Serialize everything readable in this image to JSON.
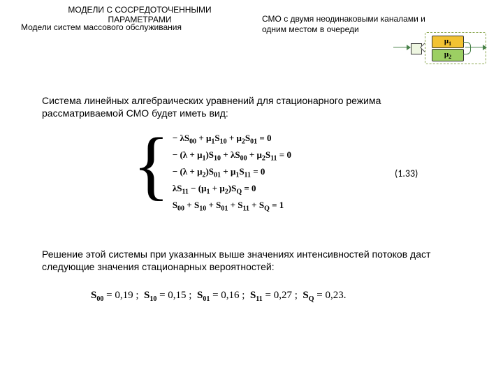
{
  "header": {
    "title": "МОДЕЛИ  С  СОСРЕДОТОЧЕННЫМИ  ПАРАМЕТРАМИ",
    "subtitle": "Модели систем массового обслуживания",
    "right": "СМО с двумя неодинаковыми каналами и одним местом в очереди"
  },
  "diagram": {
    "mu1": "μ",
    "mu1_sub": "1",
    "mu2": "μ",
    "mu2_sub": "2",
    "colors": {
      "dash_border": "#8aa64f",
      "channel1_fill": "#f2c233",
      "channel2_fill": "#9ccf63",
      "queue_fill": "#eef6e1",
      "arrow": "#49824a"
    }
  },
  "para1": "Система линейных алгебраических уравнений для стационарного режима рассматриваемой СМО будет иметь вид:",
  "equations": {
    "rows": [
      "− λS<sub>00</sub> + μ<sub>1</sub>S<sub>10</sub> + μ<sub>2</sub>S<sub>01</sub> = 0",
      "− (λ + μ<sub>1</sub>)S<sub>10</sub> + λS<sub>00</sub> + μ<sub>2</sub>S<sub>11</sub> = 0",
      "− (λ + μ<sub>2</sub>)S<sub>01</sub> + μ<sub>1</sub>S<sub>11</sub> = 0",
      "λS<sub>11</sub> − (μ<sub>1</sub> + μ<sub>2</sub>)S<sub>Q</sub> = 0",
      "S<sub>00</sub> + S<sub>10</sub> + S<sub>01</sub> + S<sub>11</sub> + S<sub>Q</sub> = 1"
    ],
    "number": "(1.33)"
  },
  "para2": "Решение этой системы при указанных выше значениях интенсивностей потоков даст следующие значения стационарных вероятностей:",
  "results": {
    "items": [
      {
        "sym": "S",
        "sub": "00",
        "val": "0,19"
      },
      {
        "sym": "S",
        "sub": "10",
        "val": "0,15"
      },
      {
        "sym": "S",
        "sub": "01",
        "val": "0,16"
      },
      {
        "sym": "S",
        "sub": "11",
        "val": "0,27"
      },
      {
        "sym": "S",
        "sub": "Q",
        "val": "0,23"
      }
    ],
    "tail_punct": "."
  },
  "style": {
    "page_bg": "#ffffff",
    "body_font": "Arial",
    "math_font": "Times New Roman",
    "body_fontsize_pt": 11,
    "math_fontsize_pt": 12
  }
}
